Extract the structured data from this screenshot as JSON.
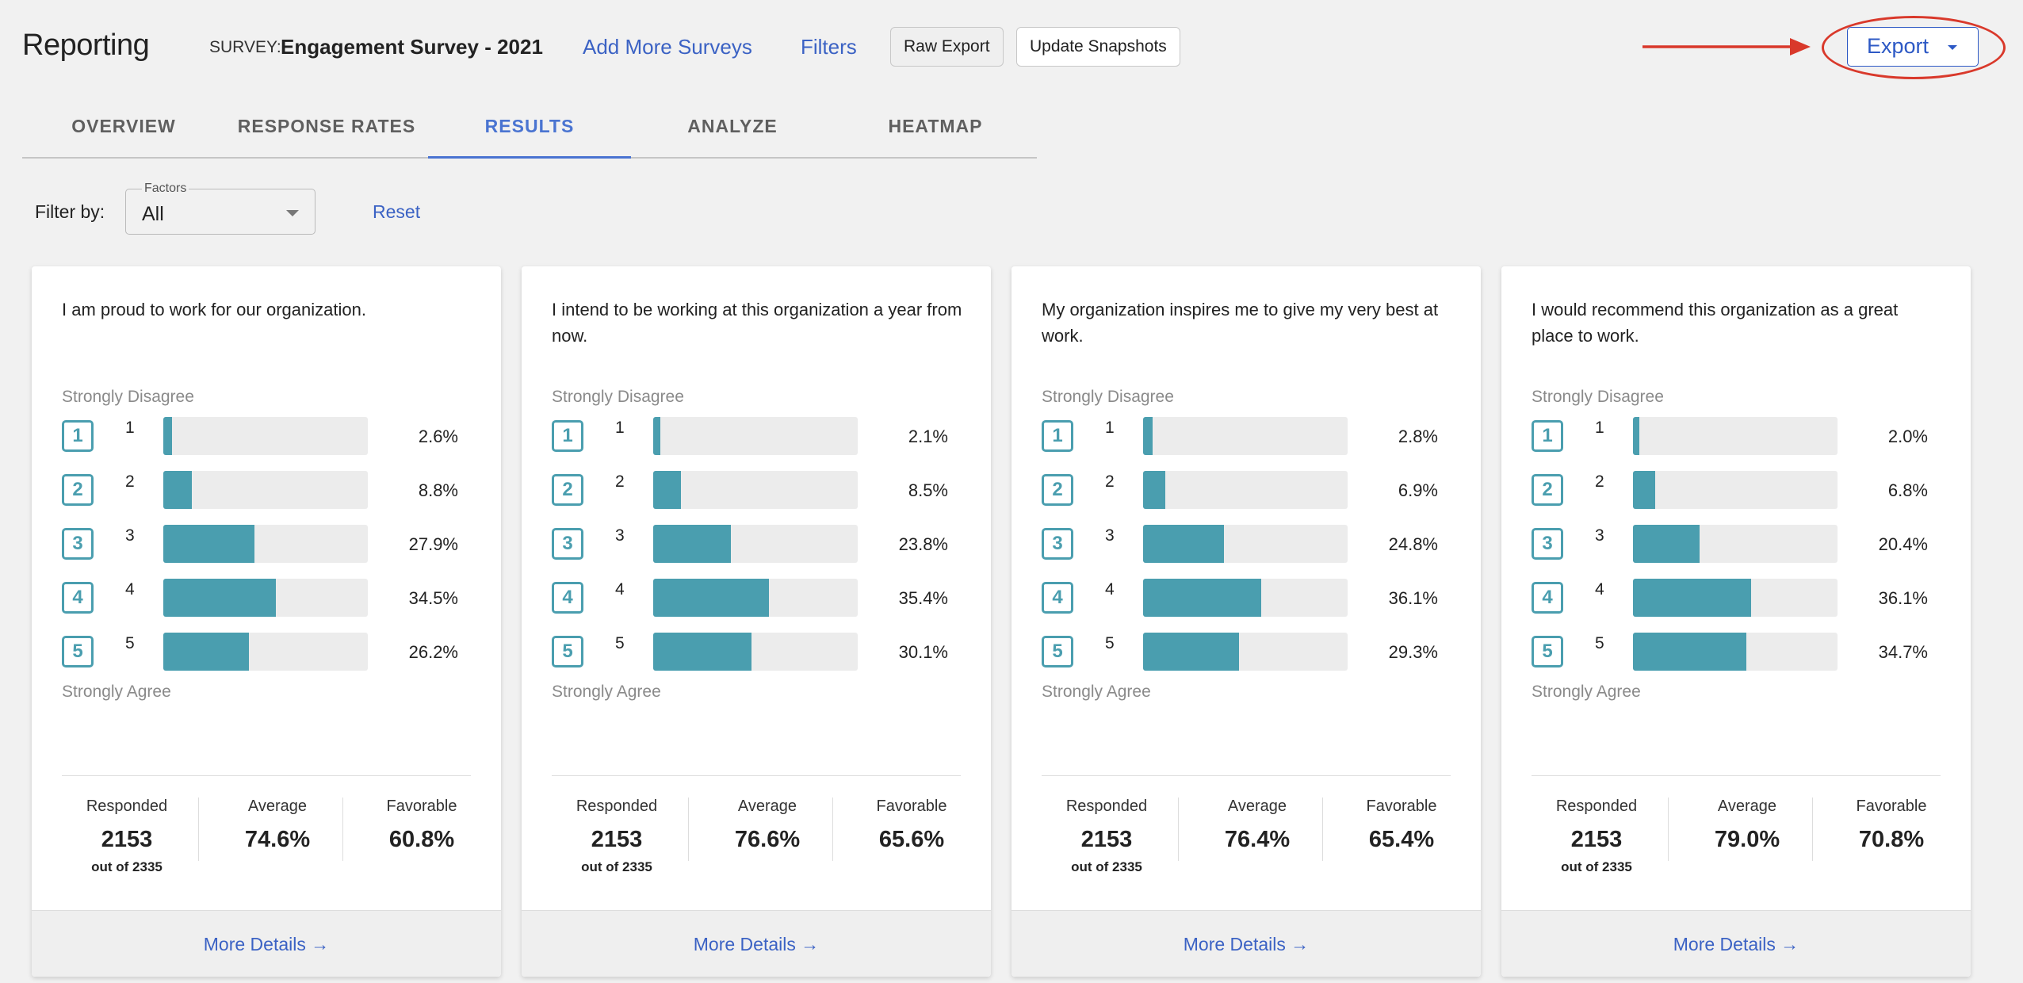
{
  "header": {
    "title": "Reporting",
    "survey_label": "SURVEY:",
    "survey_name": "Engagement Survey - 2021",
    "add_more_surveys": "Add More Surveys",
    "filters": "Filters",
    "raw_export": "Raw Export",
    "update_snapshots": "Update Snapshots",
    "export": "Export"
  },
  "colors": {
    "accent": "#4a74d1",
    "bar": "#4a9eaf",
    "annotation": "#d9392b"
  },
  "tabs": [
    {
      "label": "OVERVIEW"
    },
    {
      "label": "RESPONSE RATES"
    },
    {
      "label": "RESULTS",
      "active": true
    },
    {
      "label": "ANALYZE"
    },
    {
      "label": "HEATMAP"
    }
  ],
  "filter": {
    "label": "Filter by:",
    "select_legend": "Factors",
    "select_value": "All",
    "reset": "Reset"
  },
  "scale": {
    "top": "Strongly Disagree",
    "bottom": "Strongly Agree"
  },
  "cards": [
    {
      "question": "I am proud to work for our organization.",
      "rows": [
        {
          "num": "1",
          "value": 2.6,
          "pct": "2.6%"
        },
        {
          "num": "2",
          "value": 8.8,
          "pct": "8.8%"
        },
        {
          "num": "3",
          "value": 27.9,
          "pct": "27.9%"
        },
        {
          "num": "4",
          "value": 34.5,
          "pct": "34.5%"
        },
        {
          "num": "5",
          "value": 26.2,
          "pct": "26.2%"
        }
      ],
      "responded_label": "Responded",
      "responded": "2153",
      "out_of": "out of 2335",
      "average_label": "Average",
      "average": "74.6%",
      "favorable_label": "Favorable",
      "favorable": "60.8%",
      "more": "More Details →"
    },
    {
      "question": "I intend to be working at this organization a year from now.",
      "rows": [
        {
          "num": "1",
          "value": 2.1,
          "pct": "2.1%"
        },
        {
          "num": "2",
          "value": 8.5,
          "pct": "8.5%"
        },
        {
          "num": "3",
          "value": 23.8,
          "pct": "23.8%"
        },
        {
          "num": "4",
          "value": 35.4,
          "pct": "35.4%"
        },
        {
          "num": "5",
          "value": 30.1,
          "pct": "30.1%"
        }
      ],
      "responded_label": "Responded",
      "responded": "2153",
      "out_of": "out of 2335",
      "average_label": "Average",
      "average": "76.6%",
      "favorable_label": "Favorable",
      "favorable": "65.6%",
      "more": "More Details →"
    },
    {
      "question": "My organization inspires me to give my very best at work.",
      "rows": [
        {
          "num": "1",
          "value": 2.8,
          "pct": "2.8%"
        },
        {
          "num": "2",
          "value": 6.9,
          "pct": "6.9%"
        },
        {
          "num": "3",
          "value": 24.8,
          "pct": "24.8%"
        },
        {
          "num": "4",
          "value": 36.1,
          "pct": "36.1%"
        },
        {
          "num": "5",
          "value": 29.3,
          "pct": "29.3%"
        }
      ],
      "responded_label": "Responded",
      "responded": "2153",
      "out_of": "out of 2335",
      "average_label": "Average",
      "average": "76.4%",
      "favorable_label": "Favorable",
      "favorable": "65.4%",
      "more": "More Details →"
    },
    {
      "question": "I would recommend this organization as a great place to work.",
      "rows": [
        {
          "num": "1",
          "value": 2.0,
          "pct": "2.0%"
        },
        {
          "num": "2",
          "value": 6.8,
          "pct": "6.8%"
        },
        {
          "num": "3",
          "value": 20.4,
          "pct": "20.4%"
        },
        {
          "num": "4",
          "value": 36.1,
          "pct": "36.1%"
        },
        {
          "num": "5",
          "value": 34.7,
          "pct": "34.7%"
        }
      ],
      "responded_label": "Responded",
      "responded": "2153",
      "out_of": "out of 2335",
      "average_label": "Average",
      "average": "79.0%",
      "favorable_label": "Favorable",
      "favorable": "70.8%",
      "more": "More Details →"
    }
  ]
}
